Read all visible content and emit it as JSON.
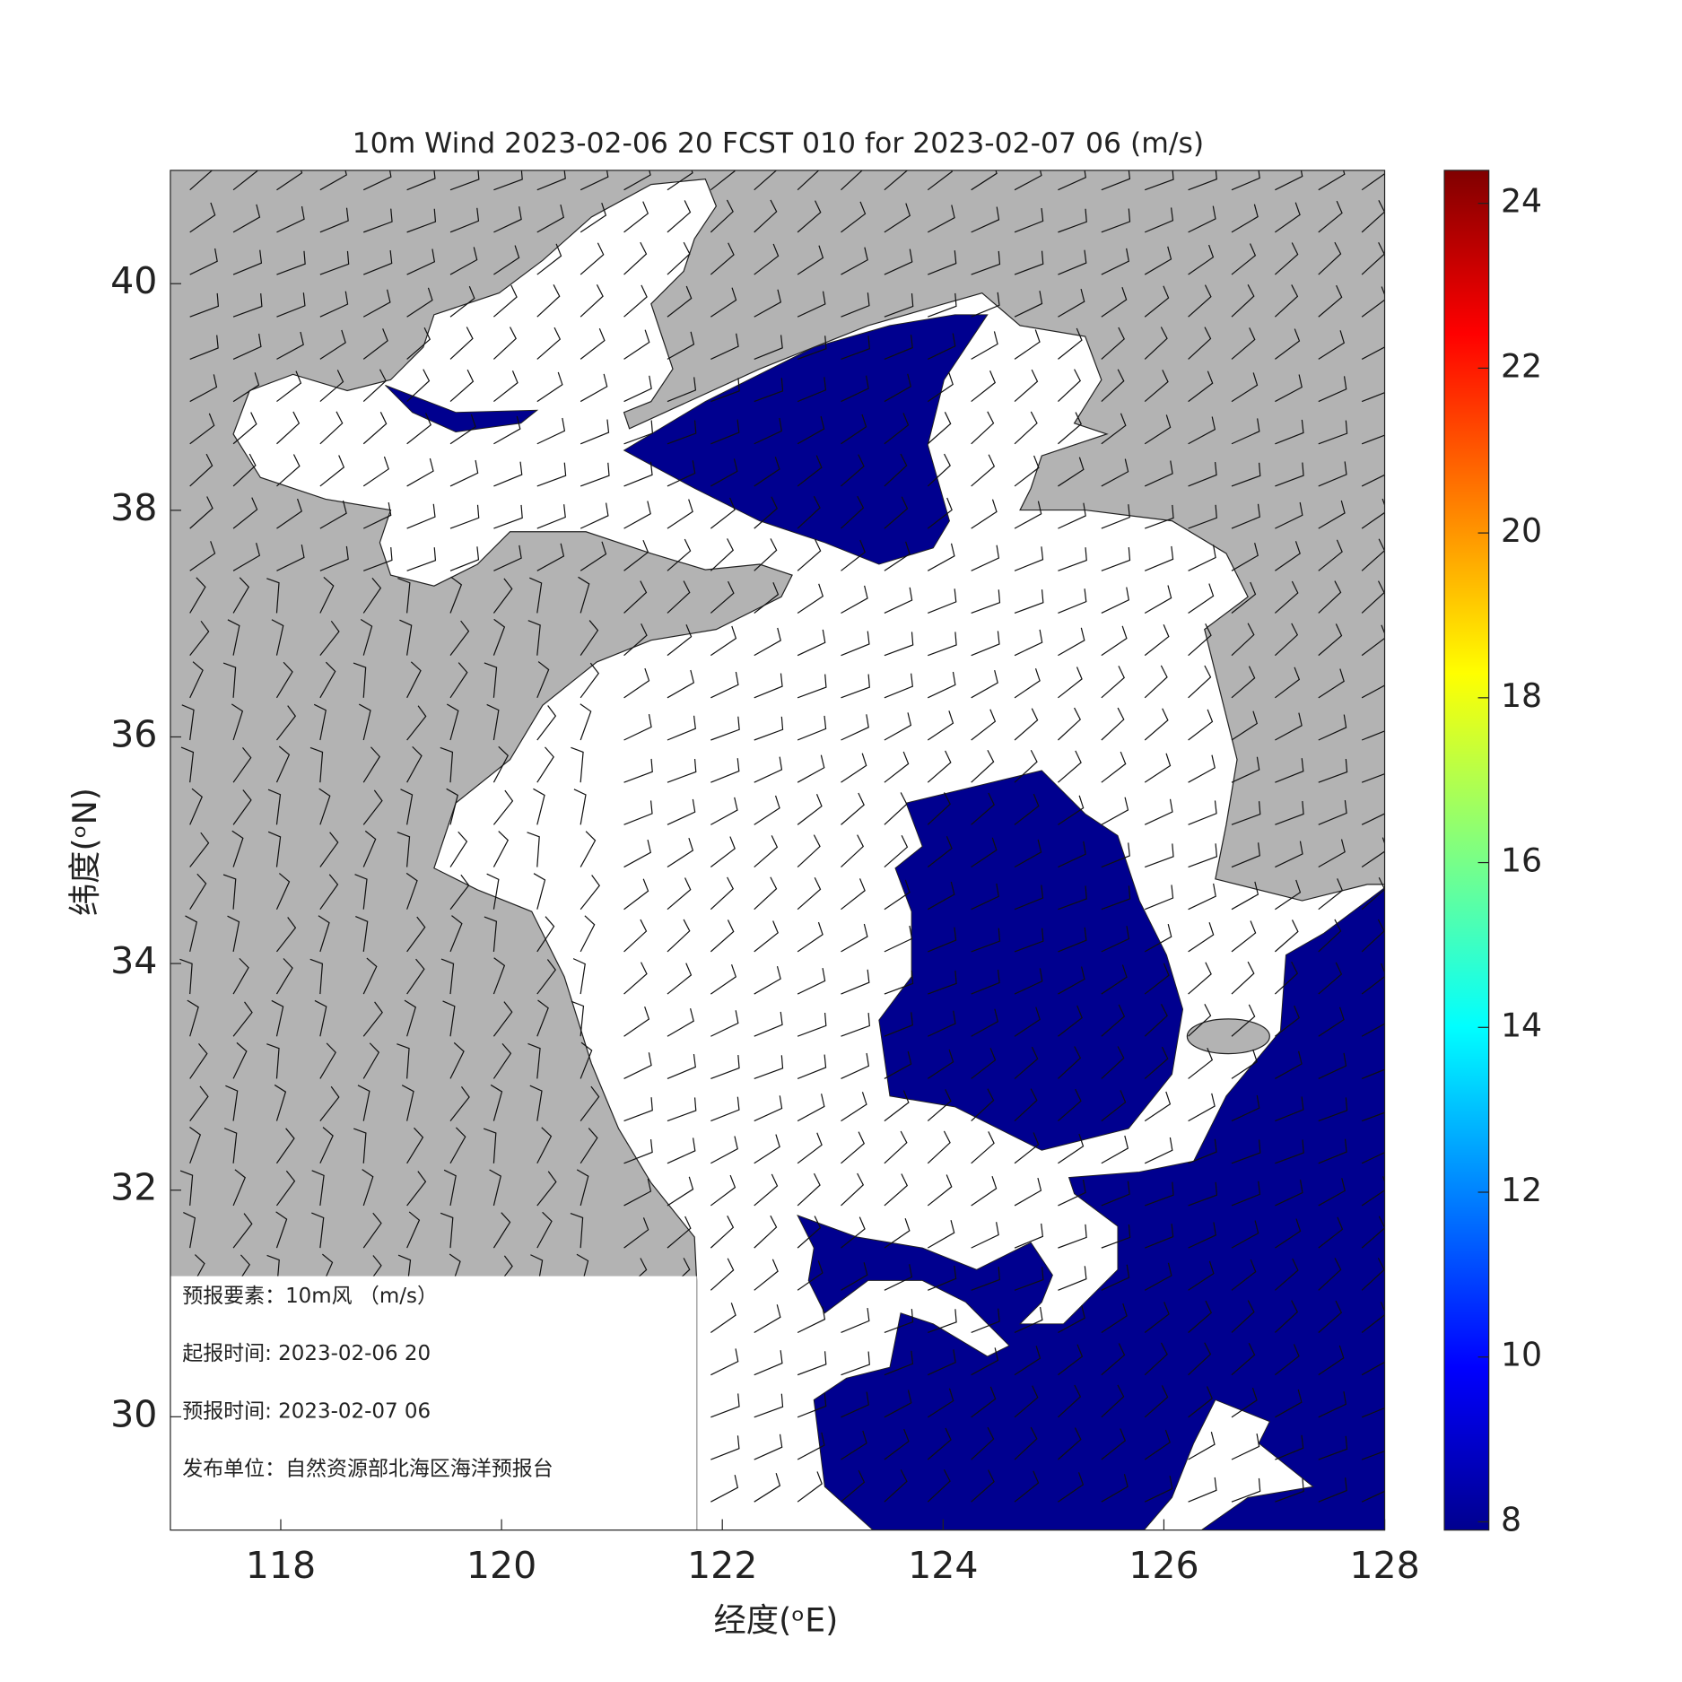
{
  "title": "10m Wind 2023-02-06 20 FCST 010 for 2023-02-07 06 (m/s)",
  "x_axis": {
    "label": "经度(ᵒE)",
    "lim": [
      117,
      128
    ],
    "ticks": [
      118,
      120,
      122,
      124,
      126,
      128
    ]
  },
  "y_axis": {
    "label": "纬度(ᵒN)",
    "lim": [
      29,
      41
    ],
    "ticks": [
      30,
      32,
      34,
      36,
      38,
      40
    ]
  },
  "colorbar": {
    "lim": [
      7.9,
      24.4
    ],
    "ticks": [
      8,
      10,
      12,
      14,
      16,
      18,
      20,
      22,
      24
    ]
  },
  "info_box": {
    "rows": [
      "预报要素：10m风 （m/s）",
      "起报时间: 2023-02-06 20",
      "预报时间: 2023-02-07 06",
      "发布单位：自然资源部北海区海洋预报台"
    ]
  }
}
